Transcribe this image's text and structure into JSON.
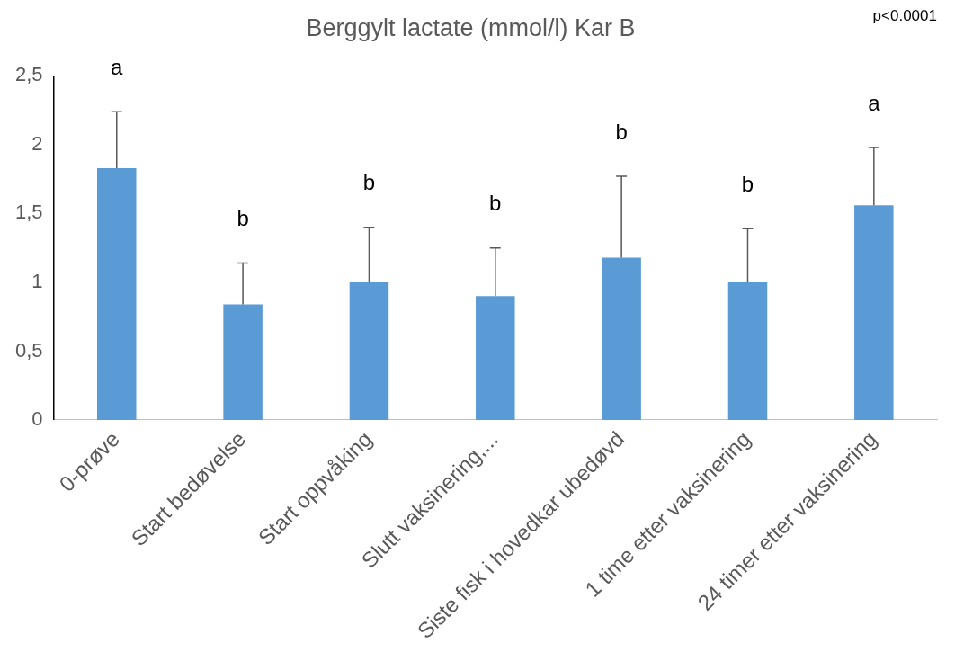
{
  "chart_data": {
    "type": "bar",
    "title": "Berggylt lactate (mmol/l) Kar B",
    "categories": [
      "0-prøve",
      "Start bedøvelse",
      "Start oppvåking",
      "Slutt vaksinering,...",
      "Siste fisk i hovedkar ubedøvd",
      "1 time etter vaksinering",
      "24 timer etter vaksinering"
    ],
    "values": [
      1.83,
      0.84,
      1.0,
      0.9,
      1.18,
      1.0,
      1.56
    ],
    "errors": [
      [
        1.83,
        2.24
      ],
      [
        0.84,
        1.14
      ],
      [
        1.0,
        1.4
      ],
      [
        0.9,
        1.25
      ],
      [
        1.18,
        1.77
      ],
      [
        1.0,
        1.39
      ],
      [
        1.56,
        1.98
      ]
    ],
    "color": "#5b9bd5",
    "ylim": [
      0,
      2.5
    ],
    "yticks": [
      0,
      {
        "value": 0.5,
        "label": "0,5"
      },
      1,
      {
        "value": 1.5,
        "label": "1,5"
      },
      2,
      {
        "value": 2.5,
        "label": "2,5"
      }
    ],
    "grid": false,
    "legend": false,
    "annotations": [
      "a",
      "b",
      "b",
      "b",
      "b",
      "b",
      "a",
      "p<0.0001"
    ]
  }
}
